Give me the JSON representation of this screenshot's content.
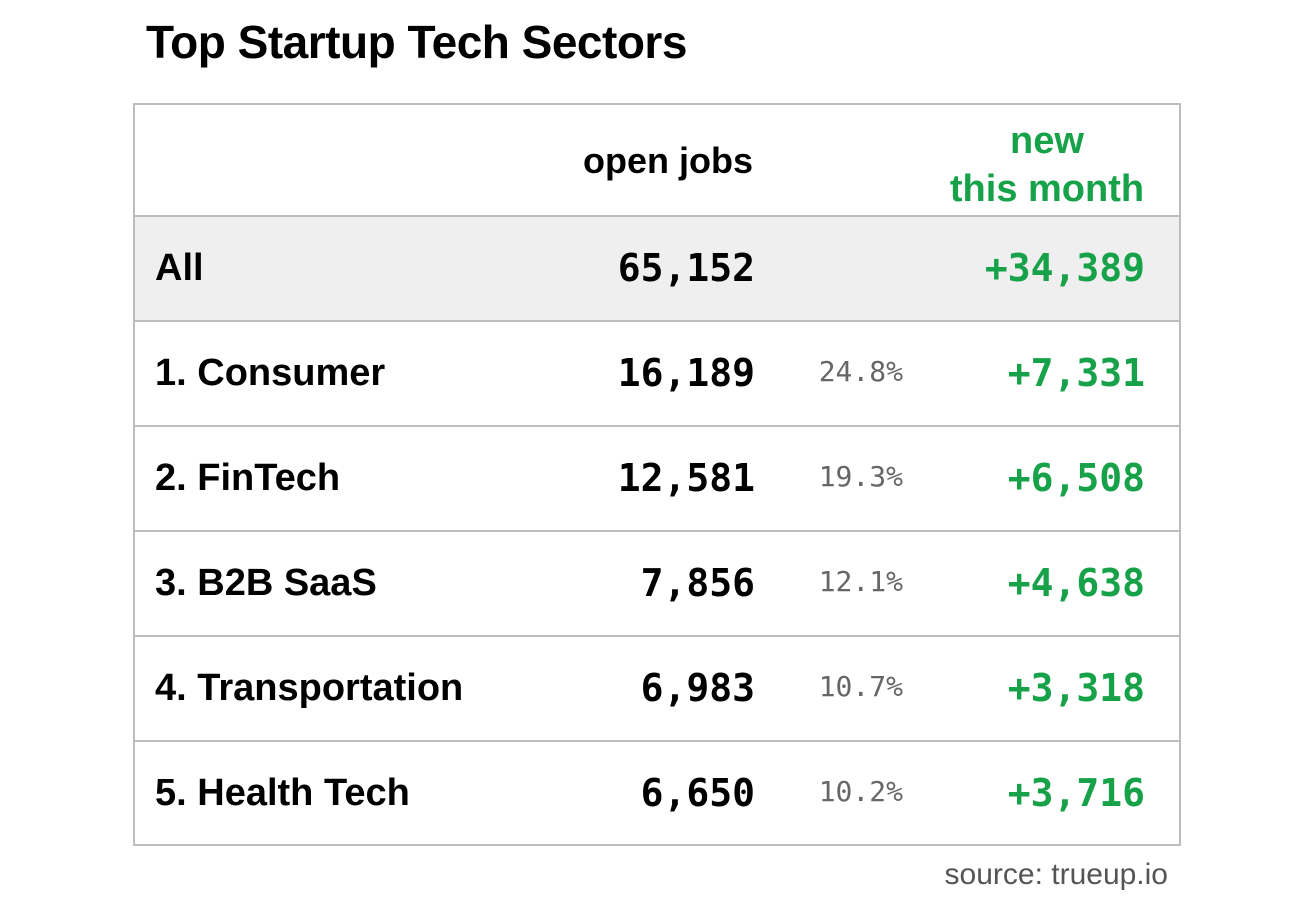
{
  "chart_data": {
    "type": "table",
    "title": "Top Startup Tech Sectors",
    "columns": [
      "",
      "open jobs",
      "",
      "new this month"
    ],
    "header": {
      "open_jobs": "open jobs",
      "new_line1": "new",
      "new_line2": "this month"
    },
    "total": {
      "label": "All",
      "open_jobs": "65,152",
      "new_this_month": "+34,389"
    },
    "rows": [
      {
        "label": "1. Consumer",
        "open_jobs": "16,189",
        "share": "24.8%",
        "new_this_month": "+7,331"
      },
      {
        "label": "2. FinTech",
        "open_jobs": "12,581",
        "share": "19.3%",
        "new_this_month": "+6,508"
      },
      {
        "label": "3. B2B SaaS",
        "open_jobs": "7,856",
        "share": "12.1%",
        "new_this_month": "+4,638"
      },
      {
        "label": "4. Transportation",
        "open_jobs": "6,983",
        "share": "10.7%",
        "new_this_month": "+3,318"
      },
      {
        "label": "5. Health Tech",
        "open_jobs": "6,650",
        "share": "10.2%",
        "new_this_month": "+3,716"
      }
    ],
    "values_numeric": {
      "open_jobs": [
        16189,
        12581,
        7856,
        6983,
        6650
      ],
      "share_percent": [
        24.8,
        19.3,
        12.1,
        10.7,
        10.2
      ],
      "new_this_month": [
        7331,
        6508,
        4638,
        3318,
        3716
      ]
    },
    "source": "source: trueup.io"
  },
  "colors": {
    "accent_green": "#17a24a",
    "total_row_bg": "#efefef",
    "border": "#bdbdbd",
    "muted_text": "#666666"
  }
}
